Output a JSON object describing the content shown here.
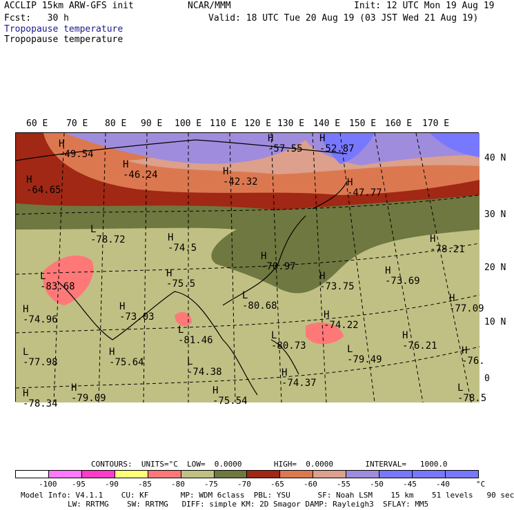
{
  "header": {
    "model": "ACCLIP 15km ARW-GFS init",
    "center": "NCAR/MMM",
    "init": "Init: 12 UTC Mon 19 Aug 19",
    "fcst": "Fcst:   30 h",
    "valid": "Valid: 18 UTC Tue 20 Aug 19 (03 JST Wed 21 Aug 19)",
    "field1": "Tropopause temperature",
    "field2": "Tropopause temperature"
  },
  "map": {
    "lon_labels": [
      "60 E",
      "70 E",
      "80 E",
      "90 E",
      "100 E",
      "110 E",
      "120 E",
      "130 E",
      "140 E",
      "150 E",
      "160 E",
      "170 E"
    ],
    "lat_labels": [
      "40 N",
      "30 N",
      "20 N",
      "10 N",
      "0"
    ],
    "extremes": [
      {
        "mark": "H",
        "value": "-49.54"
      },
      {
        "mark": "H",
        "value": "-46.24"
      },
      {
        "mark": "H",
        "value": "-42.32"
      },
      {
        "mark": "H",
        "value": "-57.55"
      },
      {
        "mark": "H",
        "value": "-52.87"
      },
      {
        "mark": "H",
        "value": "-47.77"
      },
      {
        "mark": "H",
        "value": "-64.65"
      },
      {
        "mark": "L",
        "value": "-78.72"
      },
      {
        "mark": "H",
        "value": "-74.5"
      },
      {
        "mark": "H",
        "value": "-70.97"
      },
      {
        "mark": "H",
        "value": "-78.21"
      },
      {
        "mark": "L",
        "value": "-83.68"
      },
      {
        "mark": "H",
        "value": "-75.5"
      },
      {
        "mark": "H",
        "value": "-73.75"
      },
      {
        "mark": "H",
        "value": "-73.69"
      },
      {
        "mark": "H",
        "value": "-77.09"
      },
      {
        "mark": "H",
        "value": "-74.96"
      },
      {
        "mark": "H",
        "value": "-73.03"
      },
      {
        "mark": "L",
        "value": "-80.68"
      },
      {
        "mark": "H",
        "value": "-74.22"
      },
      {
        "mark": "L",
        "value": "-81.46"
      },
      {
        "mark": "H",
        "value": "-76.21"
      },
      {
        "mark": "L",
        "value": "-77.98"
      },
      {
        "mark": "H",
        "value": "-75.64"
      },
      {
        "mark": "L",
        "value": "-80.73"
      },
      {
        "mark": "L",
        "value": "-79.49"
      },
      {
        "mark": "H",
        "value": "-76."
      },
      {
        "mark": "L",
        "value": "-74.38"
      },
      {
        "mark": "H",
        "value": "-74.37"
      },
      {
        "mark": "H",
        "value": "-79.09"
      },
      {
        "mark": "H",
        "value": "-75.54"
      },
      {
        "mark": "L",
        "value": "-78.5"
      },
      {
        "mark": "H",
        "value": "-78.34"
      }
    ]
  },
  "contours": {
    "text": "CONTOURS:  UNITS=°C  LOW=  0.0000       HIGH=  0.0000       INTERVAL=   1000.0"
  },
  "colorbar": {
    "colors": [
      "#ffffff",
      "#ff78ff",
      "#ff3cc8",
      "#ffff78",
      "#ff7878",
      "#c0c084",
      "#6e7840",
      "#a02814",
      "#dc7850",
      "#dca08c",
      "#a08cdc",
      "#7878ff",
      "#7878ff",
      "#7878ff"
    ],
    "labels": [
      "-100",
      "-95",
      "-90",
      "-85",
      "-80",
      "-75",
      "-70",
      "-65",
      "-60",
      "-55",
      "-50",
      "-45",
      "-40"
    ],
    "unit": "°C"
  },
  "footer": {
    "line1": "Model Info: V4.1.1    CU: KF       MP: WDM 6class  PBL: YSU      SF: Noah LSM    15 km    51 levels   90 sec",
    "line2": "LW: RRTMG    SW: RRTMG   DIFF: simple KM: 2D Smagor DAMP: Rayleigh3  SFLAY: MM5"
  }
}
